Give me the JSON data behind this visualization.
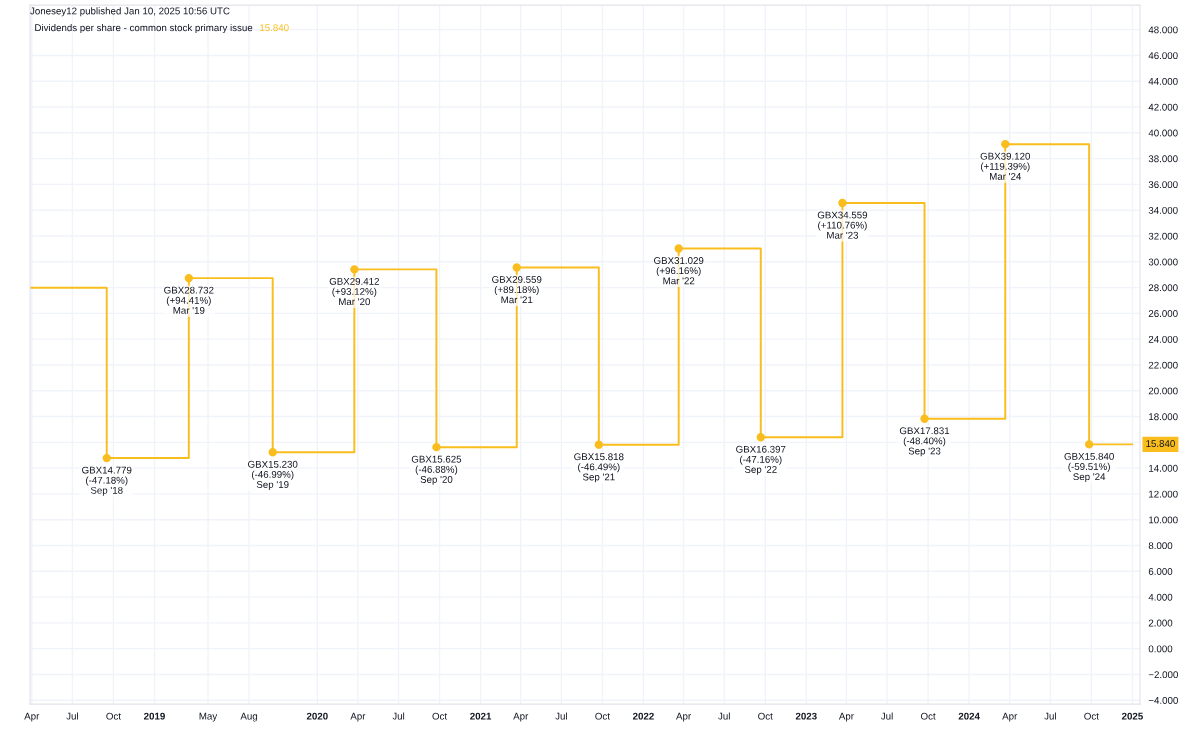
{
  "chart_data": {
    "type": "step",
    "title": "Jonesey12 published Jan 10, 2025 10:56 UTC",
    "subtitle": "Dividends per share - common stock primary issue",
    "annotations": [
      "15.840",
      "15.840"
    ],
    "x": [
      "2018-03-28",
      "2018-09-16",
      "2019-03-19",
      "2019-09-23",
      "2020-03-24",
      "2020-09-24",
      "2021-03-23",
      "2021-09-23",
      "2022-03-21",
      "2022-09-21",
      "2023-03-23",
      "2023-09-23",
      "2024-03-22",
      "2024-09-26",
      "2025-01-01"
    ],
    "series": [
      {
        "color": "#f9bd1e",
        "values": [
          27.98,
          14.779,
          28.732,
          15.23,
          29.412,
          15.625,
          29.559,
          15.818,
          31.029,
          16.397,
          34.559,
          17.831,
          39.12,
          15.84,
          15.84
        ],
        "value_labels": [
          null,
          "GBX14.779\n(-47.18%)\nSep '18",
          "GBX28.732\n(+94.41%)\nMar '19",
          "GBX15.230\n(-46.99%)\nSep '19",
          "GBX29.412\n(+93.12%)\nMar '20",
          "GBX15.625\n(-46.88%)\nSep '20",
          "GBX29.559\n(+89.18%)\nMar '21",
          "GBX15.818\n(-46.49%)\nSep '21",
          "GBX31.029\n(+96.16%)\nMar '22",
          "GBX16.397\n(-47.16%)\nSep '22",
          "GBX34.559\n(+110.76%)\nMar '23",
          "GBX17.831\n(-48.40%)\nSep '23",
          "GBX39.120\n(+119.39%)\nMar '24",
          "GBX15.840\n(-59.51%)\nSep '24",
          null
        ]
      }
    ],
    "marker": "circle",
    "grid": true,
    "xlim": [
      "2018-03-28",
      "2025-01-18"
    ],
    "xticks": [
      {
        "value": "2018-04-01",
        "label": "Apr"
      },
      {
        "value": "2018-07-01",
        "label": "Jul"
      },
      {
        "value": "2018-10-01",
        "label": "Oct"
      },
      {
        "value": "2019-01-01",
        "label": "2019"
      },
      {
        "value": "2019-05-01",
        "label": "May"
      },
      {
        "value": "2019-08-01",
        "label": "Aug"
      },
      {
        "value": "2020-01-01",
        "label": "2020"
      },
      {
        "value": "2020-04-01",
        "label": "Apr"
      },
      {
        "value": "2020-07-01",
        "label": "Jul"
      },
      {
        "value": "2020-10-01",
        "label": "Oct"
      },
      {
        "value": "2021-01-01",
        "label": "2021"
      },
      {
        "value": "2021-04-01",
        "label": "Apr"
      },
      {
        "value": "2021-07-01",
        "label": "Jul"
      },
      {
        "value": "2021-10-01",
        "label": "Oct"
      },
      {
        "value": "2022-01-01",
        "label": "2022"
      },
      {
        "value": "2022-04-01",
        "label": "Apr"
      },
      {
        "value": "2022-07-01",
        "label": "Jul"
      },
      {
        "value": "2022-10-01",
        "label": "Oct"
      },
      {
        "value": "2023-01-01",
        "label": "2023"
      },
      {
        "value": "2023-04-01",
        "label": "Apr"
      },
      {
        "value": "2023-07-01",
        "label": "Jul"
      },
      {
        "value": "2023-10-01",
        "label": "Oct"
      },
      {
        "value": "2024-01-01",
        "label": "2024"
      },
      {
        "value": "2024-04-01",
        "label": "Apr"
      },
      {
        "value": "2024-07-01",
        "label": "Jul"
      },
      {
        "value": "2024-10-01",
        "label": "Oct"
      },
      {
        "value": "2025-01-01",
        "label": "2025"
      }
    ],
    "ylim": [
      -4.3,
      49.9
    ],
    "yticks": [
      {
        "value": -4,
        "label": "−4.000"
      },
      {
        "value": -2,
        "label": "−2.000"
      },
      {
        "value": 0,
        "label": "0.000"
      },
      {
        "value": 2,
        "label": "2.000"
      },
      {
        "value": 4,
        "label": "4.000"
      },
      {
        "value": 6,
        "label": "6.000"
      },
      {
        "value": 8,
        "label": "8.000"
      },
      {
        "value": 10,
        "label": "10.000"
      },
      {
        "value": 12,
        "label": "12.000"
      },
      {
        "value": 14,
        "label": "14.000"
      },
      {
        "value": 16,
        "label": null
      },
      {
        "value": 18,
        "label": "18.000"
      },
      {
        "value": 20,
        "label": "20.000"
      },
      {
        "value": 22,
        "label": "22.000"
      },
      {
        "value": 24,
        "label": "24.000"
      },
      {
        "value": 26,
        "label": "26.000"
      },
      {
        "value": 28,
        "label": "28.000"
      },
      {
        "value": 30,
        "label": "30.000"
      },
      {
        "value": 32,
        "label": "32.000"
      },
      {
        "value": 34,
        "label": "34.000"
      },
      {
        "value": 36,
        "label": "36.000"
      },
      {
        "value": 38,
        "label": "38.000"
      },
      {
        "value": 40,
        "label": "40.000"
      },
      {
        "value": 42,
        "label": "42.000"
      },
      {
        "value": 44,
        "label": "44.000"
      },
      {
        "value": 46,
        "label": "46.000"
      },
      {
        "value": 48,
        "label": "48.000"
      }
    ]
  }
}
